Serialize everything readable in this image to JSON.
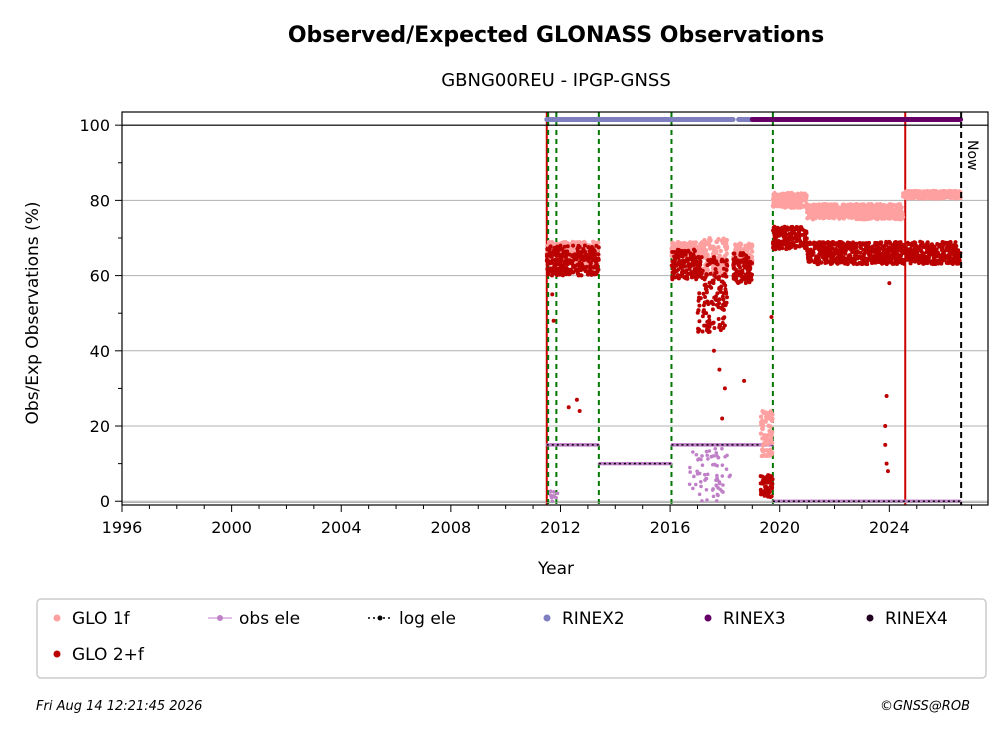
{
  "chart_data": {
    "type": "scatter",
    "title": "Observed/Expected GLONASS Observations",
    "subtitle": "GBNG00REU - IPGP-GNSS",
    "xlabel": "Year",
    "ylabel": "Obs/Exp Observations (%)",
    "xlim": [
      1996,
      2027.6
    ],
    "ylim": [
      -1,
      103.5
    ],
    "x_ticks": [
      1996,
      2000,
      2004,
      2008,
      2012,
      2016,
      2020,
      2024
    ],
    "y_ticks": [
      0,
      20,
      40,
      60,
      80,
      100
    ],
    "grid": "horizontal",
    "legend_position": "bottom",
    "now_label": "Now",
    "now_x": 2026.62,
    "legend": [
      {
        "label": "GLO 1f",
        "marker": "dot",
        "color": "#ffa0a0"
      },
      {
        "label": "obs ele",
        "marker": "line-dot",
        "color": "#c080c8"
      },
      {
        "label": "log ele",
        "marker": "dotted-line",
        "color": "#000000"
      },
      {
        "label": "RINEX2",
        "marker": "dot",
        "color": "#7f7fc0"
      },
      {
        "label": "RINEX3",
        "marker": "dot",
        "color": "#660066"
      },
      {
        "label": "RINEX4",
        "marker": "dot",
        "color": "#220022"
      },
      {
        "label": "GLO 2+f",
        "marker": "dot",
        "color": "#bb0000"
      }
    ],
    "colors": {
      "glo1f": "#ffa0a0",
      "glo2f": "#bb0000",
      "obs_ele": "#c080c8",
      "log_ele": "#000000",
      "rinex2": "#7f7fc0",
      "rinex3": "#660066",
      "rinex4": "#220022",
      "event_green": "#007700",
      "event_red": "#cc0000",
      "now_line": "#000000"
    },
    "event_lines": [
      {
        "x": 2011.5,
        "color": "red"
      },
      {
        "x": 2011.55,
        "color": "green"
      },
      {
        "x": 2011.85,
        "color": "green"
      },
      {
        "x": 2013.4,
        "color": "green"
      },
      {
        "x": 2016.05,
        "color": "green"
      },
      {
        "x": 2019.75,
        "color": "green"
      },
      {
        "x": 2024.58,
        "color": "red"
      }
    ],
    "rinex_bars": [
      {
        "series": "RINEX2",
        "x_start": 2011.5,
        "x_end": 2018.3,
        "y": 101.5
      },
      {
        "series": "RINEX2",
        "x_start": 2018.5,
        "x_end": 2019.0,
        "y": 101.5
      },
      {
        "series": "RINEX3",
        "x_start": 2019.0,
        "x_end": 2026.6,
        "y": 101.5
      }
    ],
    "log_ele_segments": [
      {
        "x_start": 2011.5,
        "x_end": 2013.4,
        "y": 15
      },
      {
        "x_start": 2013.4,
        "x_end": 2016.05,
        "y": 10
      },
      {
        "x_start": 2016.05,
        "x_end": 2019.75,
        "y": 15
      },
      {
        "x_start": 2019.75,
        "x_end": 2026.6,
        "y": 0
      }
    ],
    "series": [
      {
        "name": "GLO 1f",
        "segments": [
          {
            "x_start": 2011.5,
            "x_end": 2013.4,
            "y_center": 66,
            "y_spread": 3
          },
          {
            "x_start": 2016.05,
            "x_end": 2017.2,
            "y_center": 67,
            "y_spread": 2
          },
          {
            "x_start": 2017.2,
            "x_end": 2018.1,
            "y_center": 65,
            "y_spread": 5
          },
          {
            "x_start": 2018.3,
            "x_end": 2019.0,
            "y_center": 66,
            "y_spread": 3
          },
          {
            "x_start": 2019.3,
            "x_end": 2019.75,
            "y_center": 18,
            "y_spread": 6
          },
          {
            "x_start": 2019.75,
            "x_end": 2021.0,
            "y_center": 80,
            "y_spread": 2
          },
          {
            "x_start": 2021.0,
            "x_end": 2024.5,
            "y_center": 77,
            "y_spread": 2
          },
          {
            "x_start": 2024.5,
            "x_end": 2026.6,
            "y_center": 81.5,
            "y_spread": 1
          }
        ]
      },
      {
        "name": "GLO 2+f",
        "segments": [
          {
            "x_start": 2011.5,
            "x_end": 2013.4,
            "y_center": 64,
            "y_spread": 4
          },
          {
            "x_start": 2016.05,
            "x_end": 2017.0,
            "y_center": 63,
            "y_spread": 4
          },
          {
            "x_start": 2017.0,
            "x_end": 2018.1,
            "y_center": 55,
            "y_spread": 10
          },
          {
            "x_start": 2018.3,
            "x_end": 2019.0,
            "y_center": 62,
            "y_spread": 4
          },
          {
            "x_start": 2019.3,
            "x_end": 2019.75,
            "y_center": 4,
            "y_spread": 3
          },
          {
            "x_start": 2019.75,
            "x_end": 2021.0,
            "y_center": 70,
            "y_spread": 3
          },
          {
            "x_start": 2021.0,
            "x_end": 2024.5,
            "y_center": 66,
            "y_spread": 3
          },
          {
            "x_start": 2024.5,
            "x_end": 2026.6,
            "y_center": 66,
            "y_spread": 3
          }
        ],
        "outliers": [
          {
            "x": 2011.7,
            "y": 55
          },
          {
            "x": 2011.75,
            "y": 48
          },
          {
            "x": 2012.3,
            "y": 25
          },
          {
            "x": 2012.6,
            "y": 27
          },
          {
            "x": 2012.7,
            "y": 24
          },
          {
            "x": 2017.4,
            "y": 45
          },
          {
            "x": 2017.6,
            "y": 40
          },
          {
            "x": 2017.8,
            "y": 35
          },
          {
            "x": 2017.9,
            "y": 22
          },
          {
            "x": 2018.0,
            "y": 30
          },
          {
            "x": 2018.7,
            "y": 32
          },
          {
            "x": 2019.7,
            "y": 49
          },
          {
            "x": 2023.85,
            "y": 20
          },
          {
            "x": 2023.85,
            "y": 15
          },
          {
            "x": 2023.9,
            "y": 10
          },
          {
            "x": 2023.95,
            "y": 8
          },
          {
            "x": 2023.9,
            "y": 28
          },
          {
            "x": 2024.0,
            "y": 58
          }
        ]
      }
    ]
  },
  "footer": {
    "timestamp": "Fri Aug 14 12:21:45 2026",
    "credit": "©GNSS@ROB"
  }
}
